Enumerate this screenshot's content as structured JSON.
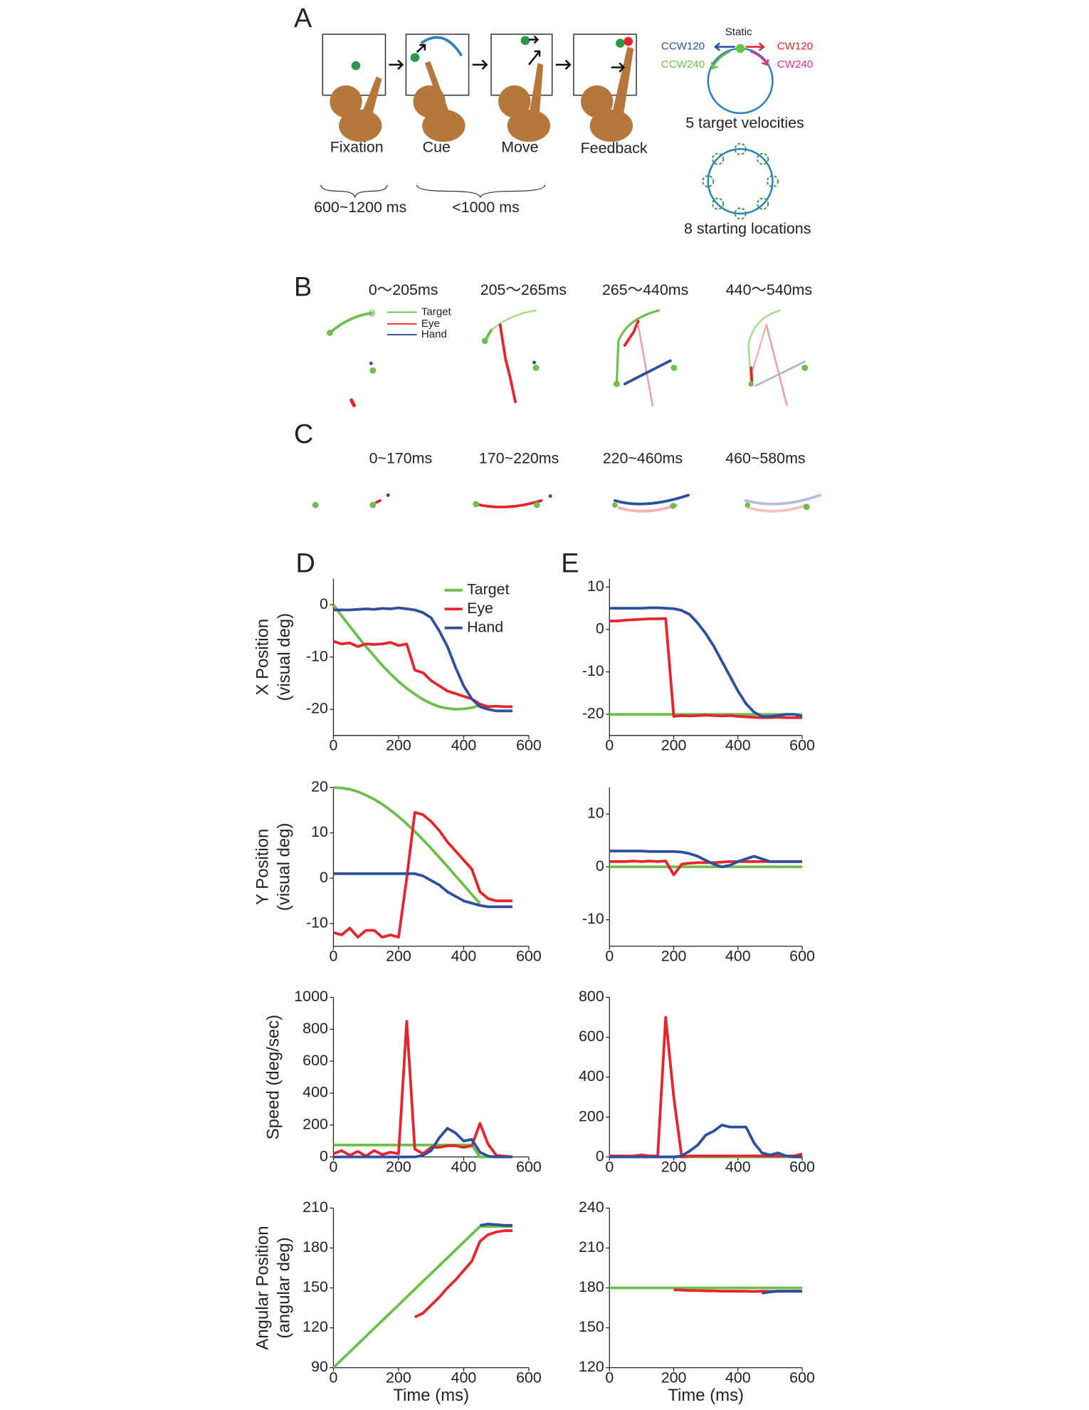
{
  "panels": {
    "a": "A",
    "b": "B",
    "c": "C",
    "d": "D",
    "e": "E"
  },
  "panel_a": {
    "stages": [
      "Fixation",
      "Cue",
      "Move",
      "Feedback"
    ],
    "durations": [
      "600~1200 ms",
      "<1000 ms"
    ],
    "velocities": {
      "static": "Static",
      "ccw120": "CCW120",
      "cw120": "CW120",
      "ccw240": "CCW240",
      "cw240": "CW240",
      "caption": "5 target velocities"
    },
    "locations_caption": "8 starting locations"
  },
  "panel_b": {
    "windows": [
      "0～205ms",
      "205～265ms",
      "265～440ms",
      "440～540ms"
    ],
    "legend": [
      "Target",
      "Eye",
      "Hand"
    ]
  },
  "panel_c": {
    "windows": [
      "0~170ms",
      "170~220ms",
      "220~460ms",
      "460~580ms"
    ]
  },
  "chart_data": [
    {
      "type": "line",
      "ylabel": [
        "X Position",
        "(visual deg)"
      ],
      "legend": "upper right",
      "x": [
        0,
        25,
        50,
        75,
        100,
        125,
        150,
        175,
        200,
        225,
        250,
        275,
        300,
        325,
        350,
        375,
        400,
        425,
        450,
        475,
        500,
        525,
        550
      ],
      "xlim": [
        0,
        600
      ],
      "xticks": [
        0,
        200,
        400,
        600
      ],
      "ylim": [
        -25,
        5
      ],
      "yticks": [
        0,
        -10,
        -20
      ],
      "series": [
        {
          "name": "Target",
          "color": "#6cc04a",
          "values": [
            0,
            -2.1,
            -4.1,
            -6.1,
            -8.0,
            -9.8,
            -11.6,
            -13.2,
            -14.7,
            -16.0,
            -17.1,
            -18.1,
            -18.9,
            -19.5,
            -19.8,
            -20.0,
            -19.9,
            -19.7,
            -19.2,
            null,
            null,
            null,
            null
          ]
        },
        {
          "name": "Eye",
          "color": "#e8232a",
          "values": [
            -7,
            -7.5,
            -7.3,
            -8,
            -7.5,
            -7.6,
            -7.5,
            -7.2,
            -7.8,
            -7.5,
            -12.5,
            -13,
            -14.5,
            -15.5,
            -16.5,
            -17,
            -17.5,
            -18,
            -19,
            -19.5,
            -19.4,
            -19.5,
            -19.5
          ]
        },
        {
          "name": "Hand",
          "color": "#2e4fa0",
          "values": [
            -1,
            -1,
            -1,
            -0.9,
            -0.8,
            -0.9,
            -0.7,
            -0.8,
            -0.6,
            -0.8,
            -1,
            -1.5,
            -2.5,
            -5,
            -8,
            -12,
            -15.5,
            -18,
            -19.5,
            -20,
            -20.3,
            -20.3,
            -20.3
          ]
        }
      ]
    },
    {
      "type": "line",
      "ylabel": [
        "Y Position",
        "(visual deg)"
      ],
      "x": [
        0,
        25,
        50,
        75,
        100,
        125,
        150,
        175,
        200,
        225,
        250,
        275,
        300,
        325,
        350,
        375,
        400,
        425,
        450,
        475,
        500,
        525,
        550
      ],
      "xlim": [
        0,
        600
      ],
      "xticks": [
        0,
        200,
        400,
        600
      ],
      "ylim": [
        -15,
        20
      ],
      "yticks": [
        20,
        10,
        0,
        -10
      ],
      "series": [
        {
          "color": "#6cc04a",
          "values": [
            20,
            19.9,
            19.6,
            19.1,
            18.3,
            17.4,
            16.3,
            15.0,
            13.6,
            12.0,
            10.3,
            8.5,
            6.6,
            4.6,
            2.6,
            0.5,
            -1.5,
            -3.6,
            -5.6,
            null,
            null,
            null,
            null
          ]
        },
        {
          "color": "#e8232a",
          "values": [
            -12,
            -12.5,
            -11,
            -13,
            -11.5,
            -11.5,
            -13,
            -12.5,
            -13,
            0,
            14.5,
            14,
            12.5,
            10.5,
            8,
            6,
            4,
            2,
            -3,
            -4.5,
            -5,
            -5,
            -5
          ]
        },
        {
          "color": "#2e4fa0",
          "values": [
            1,
            1,
            1,
            1,
            1,
            1,
            1,
            1,
            1,
            1,
            1,
            0.5,
            -0.5,
            -1.5,
            -3,
            -4,
            -5,
            -5.5,
            -6,
            -6.3,
            -6.3,
            -6.3,
            -6.3
          ]
        }
      ]
    },
    {
      "type": "line",
      "ylabel": [
        "Speed (deg/sec)"
      ],
      "x": [
        0,
        25,
        50,
        75,
        100,
        125,
        150,
        175,
        200,
        225,
        250,
        275,
        300,
        325,
        350,
        375,
        400,
        425,
        450,
        475,
        500,
        525,
        550
      ],
      "xlim": [
        0,
        600
      ],
      "xticks": [
        0,
        200,
        400,
        600
      ],
      "ylim": [
        0,
        1000
      ],
      "yticks": [
        0,
        200,
        400,
        600,
        800,
        1000
      ],
      "series": [
        {
          "color": "#6cc04a",
          "values": [
            75,
            75,
            75,
            75,
            75,
            75,
            75,
            75,
            75,
            75,
            75,
            75,
            75,
            75,
            75,
            75,
            75,
            75,
            0,
            0,
            0,
            0,
            0
          ]
        },
        {
          "color": "#e8232a",
          "values": [
            20,
            40,
            10,
            35,
            5,
            40,
            15,
            30,
            20,
            850,
            50,
            20,
            60,
            60,
            70,
            70,
            60,
            70,
            210,
            80,
            10,
            5,
            0
          ]
        },
        {
          "color": "#2e4fa0",
          "values": [
            0,
            0,
            0,
            0,
            0,
            0,
            0,
            0,
            0,
            0,
            0,
            10,
            40,
            120,
            180,
            150,
            100,
            110,
            30,
            5,
            0,
            0,
            0
          ]
        }
      ]
    },
    {
      "type": "line",
      "ylabel": [
        "Angular Position",
        "(angular deg)"
      ],
      "xlabel": "Time (ms)",
      "x": [
        0,
        25,
        50,
        75,
        100,
        125,
        150,
        175,
        200,
        225,
        250,
        275,
        300,
        325,
        350,
        375,
        400,
        425,
        450,
        475,
        500,
        525,
        550
      ],
      "xlim": [
        0,
        600
      ],
      "xticks": [
        0,
        200,
        400,
        600
      ],
      "ylim": [
        90,
        210
      ],
      "yticks": [
        90,
        120,
        150,
        180,
        210
      ],
      "series": [
        {
          "color": "#6cc04a",
          "values": [
            90,
            95.9,
            101.8,
            107.7,
            113.6,
            119.5,
            125.4,
            131.3,
            137.2,
            143.1,
            149,
            154.9,
            160.8,
            166.7,
            172.6,
            178.5,
            184.4,
            190.3,
            196.2,
            196.2,
            196.2,
            196.2,
            196.2
          ]
        },
        {
          "color": "#e8232a",
          "values": [
            null,
            null,
            null,
            null,
            null,
            null,
            null,
            null,
            null,
            null,
            128,
            131,
            137,
            143,
            150,
            156,
            163,
            170,
            185,
            190,
            192,
            193,
            193
          ]
        },
        {
          "color": "#2e4fa0",
          "values": [
            null,
            null,
            null,
            null,
            null,
            null,
            null,
            null,
            null,
            null,
            null,
            null,
            null,
            null,
            null,
            null,
            null,
            null,
            197,
            198,
            197.5,
            197,
            197
          ]
        }
      ]
    },
    {
      "type": "line",
      "x": [
        0,
        25,
        50,
        75,
        100,
        125,
        150,
        175,
        200,
        225,
        250,
        275,
        300,
        325,
        350,
        375,
        400,
        425,
        450,
        475,
        500,
        525,
        550,
        575,
        600
      ],
      "xlim": [
        0,
        600
      ],
      "xticks": [
        0,
        200,
        400,
        600
      ],
      "ylim": [
        -25,
        12
      ],
      "yticks": [
        10,
        0,
        -10,
        -20
      ],
      "series": [
        {
          "color": "#6cc04a",
          "values": [
            -20,
            -20,
            -20,
            -20,
            -20,
            -20,
            -20,
            -20,
            -20,
            -20,
            -20,
            -20,
            -20,
            -20,
            -20,
            -20,
            -20,
            -20,
            -20,
            -20,
            -20,
            -20,
            -20,
            -20,
            -20
          ]
        },
        {
          "color": "#e8232a",
          "values": [
            2,
            2,
            2.2,
            2.3,
            2.4,
            2.5,
            2.5,
            2.6,
            -20.5,
            -20.3,
            -20.4,
            -20.3,
            -20.2,
            -20.3,
            -20.4,
            -20.3,
            -20.5,
            -20.6,
            -20.7,
            -20.8,
            -20.8,
            -20.7,
            -20.8,
            -20.8,
            -20.8
          ]
        },
        {
          "color": "#2e4fa0",
          "values": [
            5,
            5,
            5,
            5,
            5,
            5.1,
            5.1,
            5,
            4.9,
            4.5,
            3.5,
            1.5,
            -1,
            -4,
            -7.5,
            -11,
            -14.5,
            -17.5,
            -19.5,
            -20.5,
            -20.5,
            -20.3,
            -20,
            -20,
            -20.5
          ]
        }
      ]
    },
    {
      "type": "line",
      "x": [
        0,
        25,
        50,
        75,
        100,
        125,
        150,
        175,
        200,
        225,
        250,
        275,
        300,
        325,
        350,
        375,
        400,
        425,
        450,
        475,
        500,
        525,
        550,
        575,
        600
      ],
      "xlim": [
        0,
        600
      ],
      "xticks": [
        0,
        200,
        400,
        600
      ],
      "ylim": [
        -15,
        15
      ],
      "yticks": [
        10,
        0,
        -10
      ],
      "series": [
        {
          "color": "#6cc04a",
          "values": [
            0,
            0,
            0,
            0,
            0,
            0,
            0,
            0,
            0,
            0,
            0,
            0,
            0,
            0,
            0,
            0,
            0,
            0,
            0,
            0,
            0,
            0,
            0,
            0,
            0
          ]
        },
        {
          "color": "#e8232a",
          "values": [
            1,
            1,
            1,
            1.1,
            1,
            1.1,
            1,
            1.1,
            -1.5,
            0.5,
            0.7,
            0.8,
            0.8,
            0.8,
            0.9,
            1,
            1,
            1,
            1,
            1,
            1,
            1,
            1,
            1,
            1
          ]
        },
        {
          "color": "#2e4fa0",
          "values": [
            3,
            3,
            3,
            3,
            3,
            2.9,
            2.9,
            2.9,
            2.9,
            2.8,
            2.5,
            2,
            1.2,
            0.5,
            0,
            0.3,
            1,
            1.5,
            2,
            1.5,
            1,
            1,
            1,
            1,
            1
          ]
        }
      ]
    },
    {
      "type": "line",
      "x": [
        0,
        25,
        50,
        75,
        100,
        125,
        150,
        175,
        200,
        225,
        250,
        275,
        300,
        325,
        350,
        375,
        400,
        425,
        450,
        475,
        500,
        525,
        550,
        575,
        600
      ],
      "xlim": [
        0,
        600
      ],
      "xticks": [
        0,
        200,
        400,
        600
      ],
      "ylim": [
        0,
        800
      ],
      "yticks": [
        0,
        200,
        400,
        600,
        800
      ],
      "series": [
        {
          "color": "#6cc04a",
          "values": [
            0,
            0,
            0,
            0,
            0,
            0,
            0,
            0,
            0,
            0,
            0,
            0,
            0,
            0,
            0,
            0,
            0,
            0,
            0,
            0,
            0,
            0,
            0,
            0,
            0
          ]
        },
        {
          "color": "#e8232a",
          "values": [
            5,
            5,
            5,
            5,
            10,
            5,
            5,
            700,
            300,
            0,
            5,
            5,
            5,
            5,
            5,
            5,
            5,
            5,
            5,
            5,
            5,
            5,
            5,
            5,
            15
          ]
        },
        {
          "color": "#2e4fa0",
          "values": [
            0,
            0,
            0,
            0,
            0,
            0,
            0,
            0,
            0,
            5,
            30,
            60,
            110,
            130,
            160,
            150,
            150,
            150,
            70,
            20,
            10,
            20,
            5,
            0,
            0
          ]
        }
      ]
    },
    {
      "type": "line",
      "xlabel": "Time (ms)",
      "x": [
        0,
        25,
        50,
        75,
        100,
        125,
        150,
        175,
        200,
        225,
        250,
        275,
        300,
        325,
        350,
        375,
        400,
        425,
        450,
        475,
        500,
        525,
        550,
        575,
        600
      ],
      "xlim": [
        0,
        600
      ],
      "xticks": [
        0,
        200,
        400,
        600
      ],
      "ylim": [
        120,
        240
      ],
      "yticks": [
        120,
        150,
        180,
        210,
        240
      ],
      "series": [
        {
          "color": "#6cc04a",
          "values": [
            180,
            180,
            180,
            180,
            180,
            180,
            180,
            180,
            180,
            180,
            180,
            180,
            180,
            180,
            180,
            180,
            180,
            180,
            180,
            180,
            180,
            180,
            180,
            180,
            180
          ]
        },
        {
          "color": "#e8232a",
          "values": [
            null,
            null,
            null,
            null,
            null,
            null,
            null,
            null,
            178.5,
            178.3,
            178,
            178,
            177.8,
            177.8,
            177.5,
            177.6,
            177.5,
            177.5,
            177.3,
            177.5,
            177.4,
            177.5,
            177.5,
            177.5,
            177.5
          ]
        },
        {
          "color": "#2e4fa0",
          "values": [
            null,
            null,
            null,
            null,
            null,
            null,
            null,
            null,
            null,
            null,
            null,
            null,
            null,
            null,
            null,
            null,
            null,
            null,
            null,
            176,
            177,
            177.5,
            177.5,
            177.5,
            177.5
          ]
        }
      ]
    }
  ]
}
